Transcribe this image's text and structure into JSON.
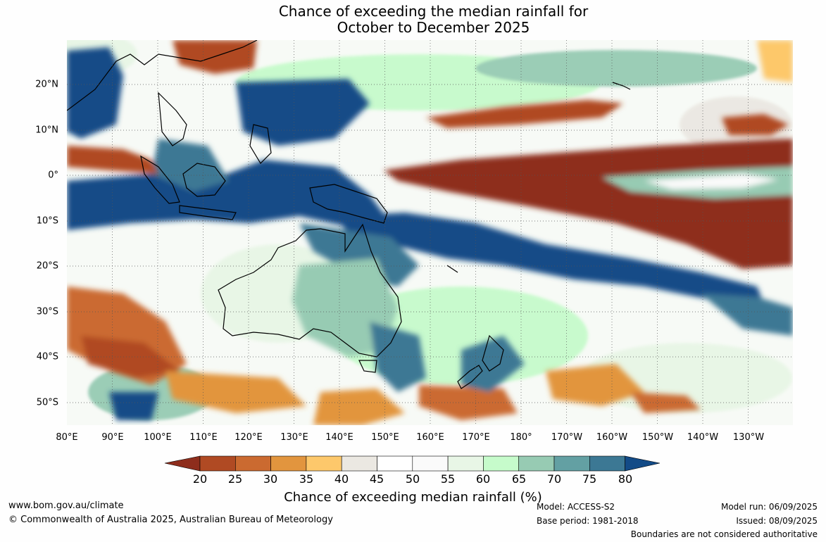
{
  "title_line1": "Chance of exceeding the median rainfall for",
  "title_line2": "October to December 2025",
  "lat_labels": [
    "20°N",
    "10°N",
    "0°",
    "10°S",
    "20°S",
    "30°S",
    "40°S",
    "50°S"
  ],
  "lon_labels": [
    "80°E",
    "90°E",
    "100°E",
    "110°E",
    "120°E",
    "130°E",
    "140°E",
    "150°E",
    "160°E",
    "170°E",
    "180°",
    "170°W",
    "160°W",
    "150°W",
    "140°W",
    "130°W"
  ],
  "colorbar": {
    "ticks": [
      "20",
      "25",
      "30",
      "35",
      "40",
      "45",
      "50",
      "55",
      "60",
      "65",
      "70",
      "75",
      "80"
    ],
    "colors": [
      "#8e2d1c",
      "#b04a23",
      "#cb6a30",
      "#e2953e",
      "#fdc86b",
      "#ebe8e2",
      "#ffffff",
      "#fafafa",
      "#e8f6e6",
      "#c6fbcb",
      "#97cbb3",
      "#63a0a3",
      "#3c7894",
      "#134b87"
    ],
    "label": "Chance of exceeding median rainfall (%)"
  },
  "footer": {
    "website": "www.bom.gov.au/climate",
    "copyright": "© Commonwealth of Australia 2025, Australian Bureau of Meteorology",
    "model": "Model: ACCESS-S2",
    "base_period": "Base period: 1981-2018",
    "model_run": "Model run: 06/09/2025",
    "issued": "Issued: 08/09/2025",
    "disclaimer": "Boundaries are not considered authoritative"
  }
}
